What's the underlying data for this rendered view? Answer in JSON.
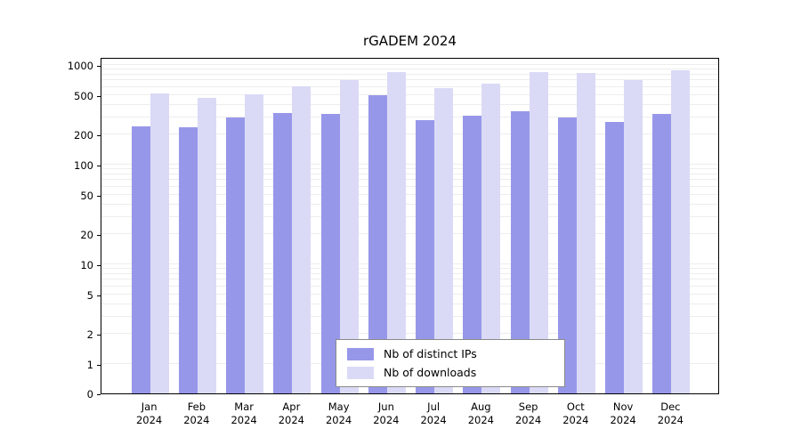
{
  "chart_data": {
    "type": "bar",
    "title": "rGADEM 2024",
    "categories": [
      "Jan",
      "Feb",
      "Mar",
      "Apr",
      "May",
      "Jun",
      "Jul",
      "Aug",
      "Sep",
      "Oct",
      "Nov",
      "Dec"
    ],
    "year": "2024",
    "series": [
      {
        "name": "Nb of distinct IPs",
        "color": "#9797ea",
        "values": [
          240,
          235,
          300,
          330,
          325,
          500,
          280,
          310,
          345,
          300,
          270,
          325
        ]
      },
      {
        "name": "Nb of downloads",
        "color": "#dadaf6",
        "values": [
          520,
          470,
          505,
          610,
          700,
          840,
          590,
          650,
          850,
          830,
          710,
          890
        ]
      }
    ],
    "yticks": [
      0,
      1,
      2,
      5,
      10,
      20,
      50,
      100,
      200,
      500,
      1000
    ],
    "yscale": "log",
    "ylim": [
      0,
      1000
    ],
    "xlabel": "",
    "ylabel": "",
    "grid": true,
    "legend_position": "bottom-center",
    "gridline_color": "#ededed"
  }
}
